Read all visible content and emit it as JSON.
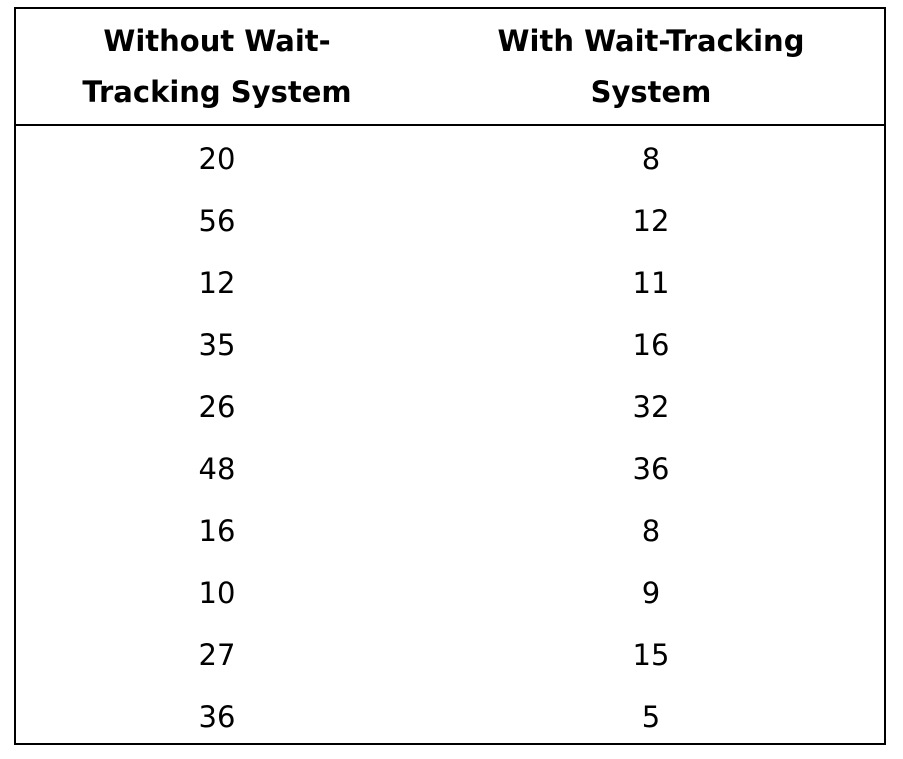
{
  "table": {
    "headers": [
      "Without Wait-\nTracking System",
      "With Wait-Tracking\nSystem"
    ],
    "rows": [
      [
        "20",
        "8"
      ],
      [
        "56",
        "12"
      ],
      [
        "12",
        "11"
      ],
      [
        "35",
        "16"
      ],
      [
        "26",
        "32"
      ],
      [
        "48",
        "36"
      ],
      [
        "16",
        "8"
      ],
      [
        "10",
        "9"
      ],
      [
        "27",
        "15"
      ],
      [
        "36",
        "5"
      ]
    ]
  }
}
